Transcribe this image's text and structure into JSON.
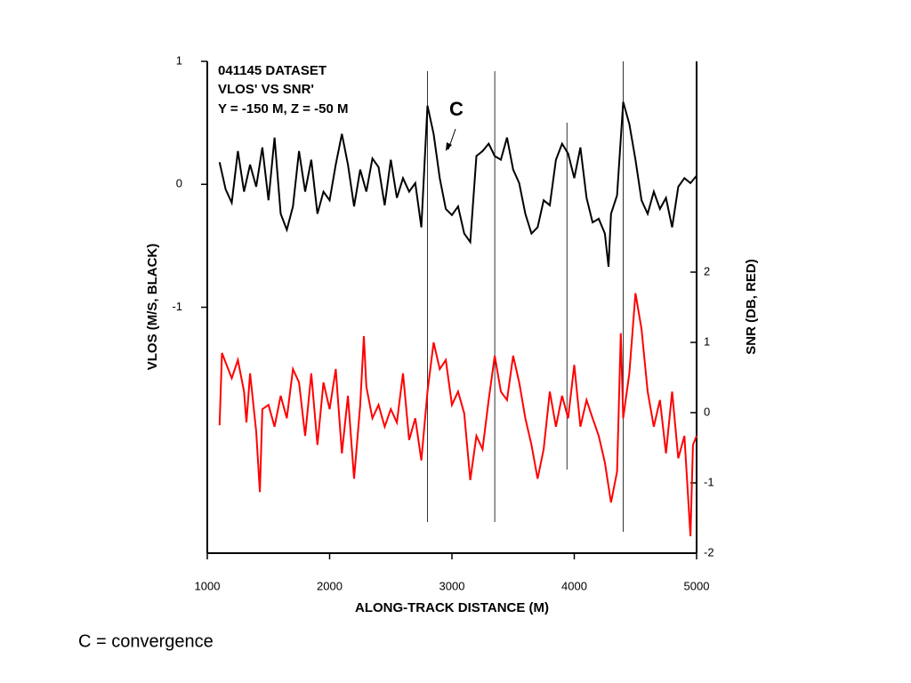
{
  "chart_data": {
    "type": "line",
    "title_lines": [
      "041145 DATASET",
      "VLOS' VS SNR'",
      "Y = -150 M, Z = -50 M"
    ],
    "xlabel": "ALONG-TRACK DISTANCE (M)",
    "ylabel": "VLOS (M/S, BLACK)",
    "y2label": "SNR (DB, RED)",
    "annotation": "C",
    "footnote": "C = convergence",
    "xlim": [
      1000,
      5000
    ],
    "xticks": [
      1000,
      2000,
      3000,
      4000,
      5000
    ],
    "ylim": [
      -3,
      1
    ],
    "yticks": [
      1,
      0,
      -1
    ],
    "y2lim": [
      -2,
      5
    ],
    "y2ticks": [
      2,
      1,
      0,
      -1,
      -2
    ],
    "vertical_lines": [
      2800,
      3350,
      3940,
      4400
    ],
    "series": [
      {
        "name": "VLOS",
        "color": "#000000",
        "x": [
          1100,
          1150,
          1200,
          1250,
          1300,
          1350,
          1400,
          1450,
          1500,
          1550,
          1600,
          1650,
          1700,
          1750,
          1800,
          1850,
          1900,
          1950,
          2000,
          2050,
          2100,
          2150,
          2200,
          2250,
          2300,
          2350,
          2400,
          2450,
          2500,
          2550,
          2600,
          2650,
          2700,
          2750,
          2800,
          2850,
          2900,
          2950,
          3000,
          3050,
          3100,
          3150,
          3200,
          3250,
          3300,
          3350,
          3400,
          3450,
          3500,
          3550,
          3600,
          3650,
          3700,
          3750,
          3800,
          3850,
          3900,
          3950,
          4000,
          4050,
          4100,
          4150,
          4200,
          4250,
          4280,
          4300,
          4350,
          4400,
          4450,
          4500,
          4550,
          4600,
          4650,
          4700,
          4750,
          4800,
          4850,
          4900,
          4950,
          5000
        ],
        "values": [
          0.18,
          -0.04,
          -0.15,
          0.27,
          -0.06,
          0.16,
          -0.02,
          0.3,
          -0.13,
          0.38,
          -0.24,
          -0.37,
          -0.18,
          0.27,
          -0.06,
          0.2,
          -0.24,
          -0.06,
          -0.13,
          0.16,
          0.41,
          0.16,
          -0.18,
          0.12,
          -0.06,
          0.21,
          0.14,
          -0.17,
          0.2,
          -0.11,
          0.05,
          -0.06,
          0.01,
          -0.35,
          0.64,
          0.41,
          0.05,
          -0.2,
          -0.25,
          -0.18,
          -0.4,
          -0.47,
          0.23,
          0.27,
          0.33,
          0.23,
          0.2,
          0.38,
          0.12,
          0.01,
          -0.24,
          -0.4,
          -0.35,
          -0.13,
          -0.17,
          0.2,
          0.33,
          0.25,
          0.05,
          0.3,
          -0.11,
          -0.31,
          -0.28,
          -0.4,
          -0.67,
          -0.24,
          -0.09,
          0.67,
          0.49,
          0.2,
          -0.13,
          -0.24,
          -0.06,
          -0.2,
          -0.11,
          -0.35,
          -0.02,
          0.05,
          0.01,
          0.07
        ]
      },
      {
        "name": "SNR",
        "color": "#ff0000",
        "axis": "y2",
        "x": [
          1100,
          1120,
          1200,
          1250,
          1300,
          1320,
          1350,
          1400,
          1430,
          1450,
          1500,
          1550,
          1600,
          1650,
          1700,
          1750,
          1800,
          1850,
          1900,
          1950,
          2000,
          2050,
          2100,
          2150,
          2200,
          2250,
          2280,
          2300,
          2350,
          2400,
          2450,
          2500,
          2550,
          2600,
          2650,
          2700,
          2750,
          2800,
          2850,
          2900,
          2950,
          3000,
          3050,
          3100,
          3150,
          3200,
          3250,
          3300,
          3350,
          3400,
          3450,
          3500,
          3550,
          3600,
          3650,
          3700,
          3750,
          3800,
          3850,
          3900,
          3950,
          4000,
          4050,
          4100,
          4150,
          4200,
          4250,
          4300,
          4350,
          4380,
          4400,
          4450,
          4500,
          4550,
          4600,
          4650,
          4700,
          4750,
          4800,
          4850,
          4900,
          4950,
          4970,
          5000
        ],
        "values": [
          -0.18,
          0.85,
          0.49,
          0.75,
          0.3,
          -0.14,
          0.56,
          -0.27,
          -1.13,
          0.05,
          0.11,
          -0.2,
          0.24,
          -0.08,
          0.62,
          0.43,
          -0.33,
          0.56,
          -0.46,
          0.43,
          0.05,
          0.62,
          -0.58,
          0.24,
          -0.94,
          0.11,
          1.09,
          0.37,
          -0.08,
          0.11,
          -0.2,
          0.05,
          -0.14,
          0.56,
          -0.39,
          -0.08,
          -0.68,
          0.3,
          1.0,
          0.62,
          0.75,
          0.11,
          0.3,
          -0.01,
          -0.96,
          -0.33,
          -0.52,
          0.18,
          0.81,
          0.3,
          0.18,
          0.81,
          0.43,
          -0.08,
          -0.46,
          -0.94,
          -0.52,
          0.3,
          -0.2,
          0.24,
          -0.08,
          0.68,
          -0.2,
          0.18,
          -0.08,
          -0.33,
          -0.71,
          -1.28,
          -0.84,
          1.13,
          -0.08,
          0.56,
          1.7,
          1.19,
          0.3,
          -0.2,
          0.18,
          -0.58,
          0.3,
          -0.65,
          -0.33,
          -1.76,
          -0.46,
          -0.33
        ]
      }
    ]
  }
}
